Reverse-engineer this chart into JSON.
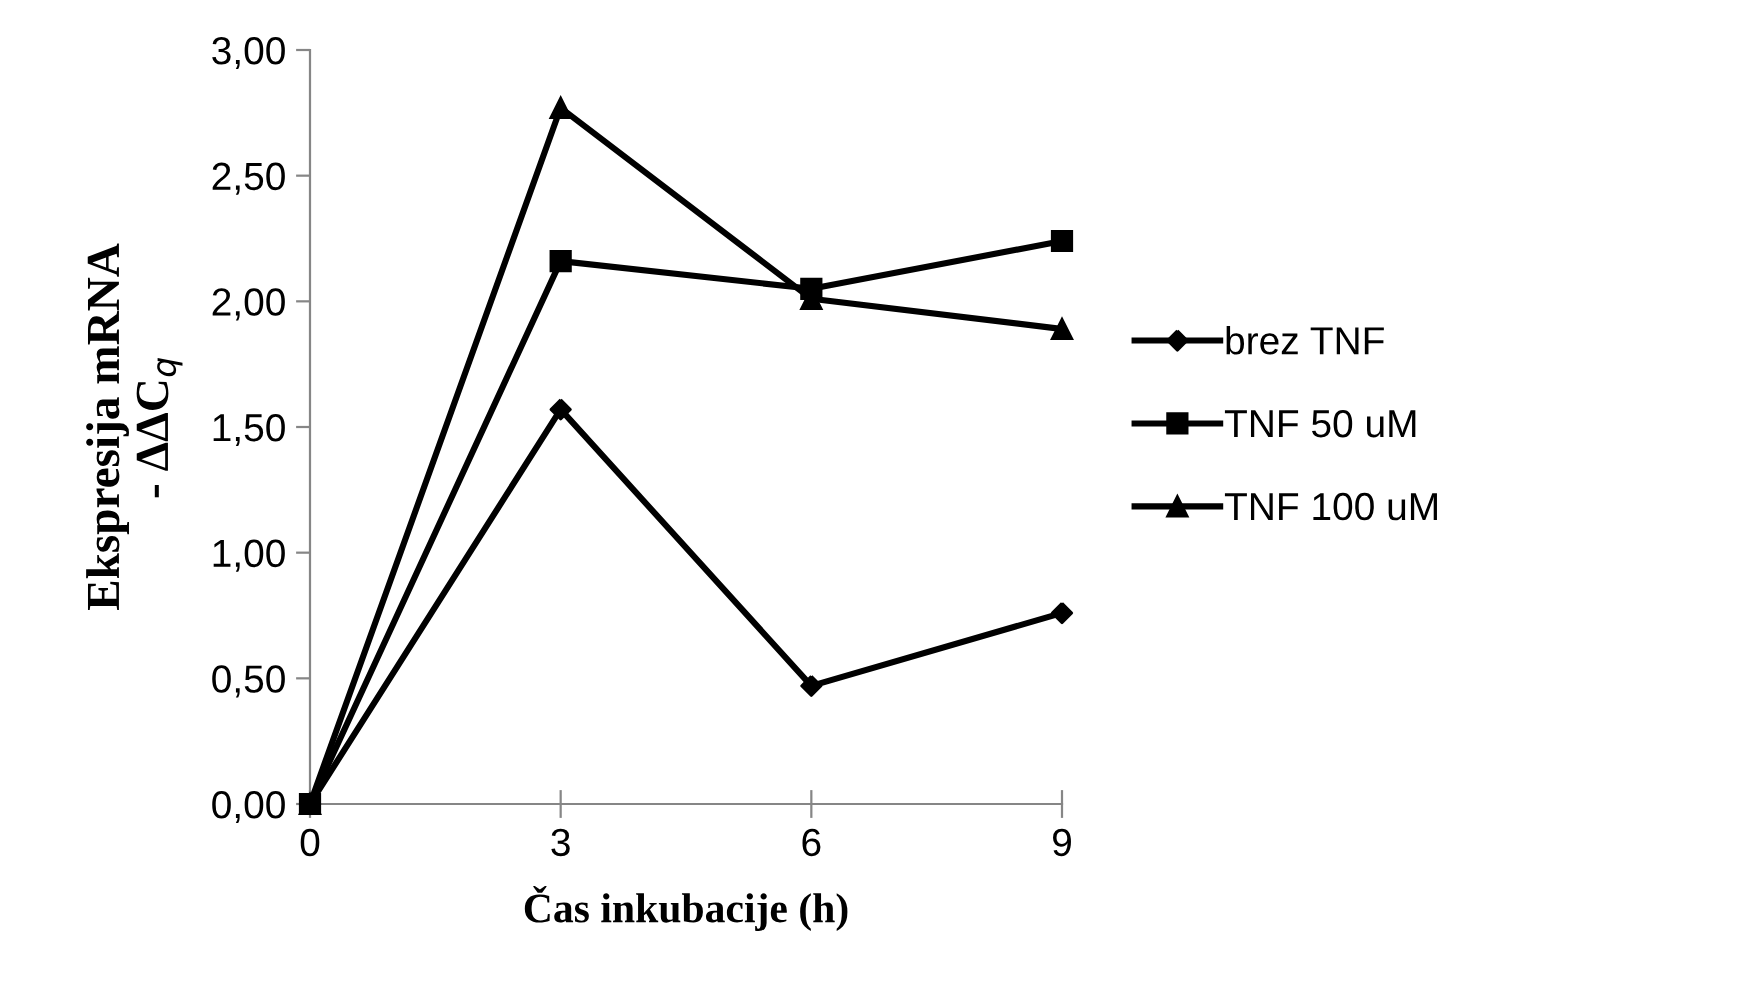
{
  "chart_data": {
    "type": "line",
    "xlabel": "Čas inkubacije (h)",
    "ylabel": "Ekspresija mRNA\n- ΔΔC$_{q}$",
    "categories": [
      "0",
      "3",
      "6",
      "9"
    ],
    "series": [
      {
        "name": "brez TNF",
        "color": "#000000",
        "marker": "diamond",
        "values": [
          0,
          1.57,
          0.47,
          0.76
        ]
      },
      {
        "name": "TNF 50 uM",
        "color": "#000000",
        "marker": "square",
        "values": [
          0,
          2.16,
          2.05,
          2.24
        ]
      },
      {
        "name": "TNF 100 uM",
        "color": "#000000",
        "marker": "triangle",
        "values": [
          0,
          2.77,
          2.01,
          1.89
        ]
      }
    ],
    "ylim": [
      0,
      3
    ],
    "yticks": [
      {
        "value": 0,
        "label": "0,00"
      },
      {
        "value": 0.5,
        "label": "0,50"
      },
      {
        "value": 1,
        "label": "1,00"
      },
      {
        "value": 1.5,
        "label": "1,50"
      },
      {
        "value": 2,
        "label": "2,00"
      },
      {
        "value": 2.5,
        "label": "2,50"
      },
      {
        "value": 3,
        "label": "3,00"
      }
    ],
    "grid": false,
    "legend": "right",
    "line_style": "solid"
  }
}
